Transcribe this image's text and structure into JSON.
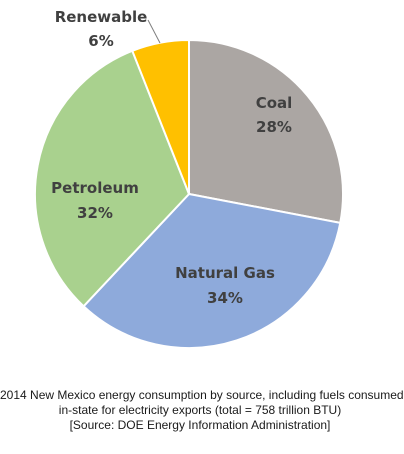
{
  "chart_data": {
    "type": "pie",
    "slices": [
      {
        "label": "Coal",
        "value": 28,
        "value_label": "28%",
        "color": "#ABA6A3"
      },
      {
        "label": "Natural Gas",
        "value": 34,
        "value_label": "34%",
        "color": "#8EAADB"
      },
      {
        "label": "Petroleum",
        "value": 32,
        "value_label": "32%",
        "color": "#A9D18E"
      },
      {
        "label": "Renewable",
        "value": 6,
        "value_label": "6%",
        "color": "#FFC000"
      }
    ],
    "start": "12 o'clock",
    "direction": "clockwise",
    "legend": "none",
    "label_position": "inside",
    "caption": [
      "2014 New Mexico energy consumption by source, including fuels consumed",
      "in-state for electricity exports (total = 758 trillion BTU)",
      "[Source: DOE Energy Information Administration]"
    ]
  }
}
